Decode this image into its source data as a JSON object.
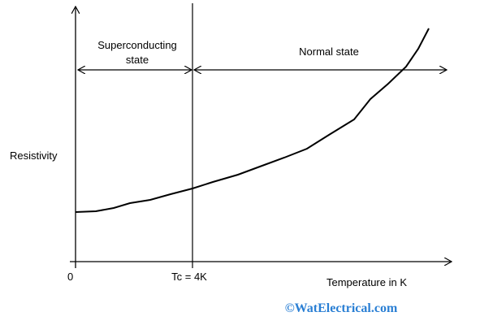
{
  "diagram": {
    "labels": {
      "superconducting_line1": "Superconducting",
      "superconducting_line2": "state",
      "normal_state": "Normal state",
      "y_axis": "Resistivity",
      "origin": "0",
      "tc": "Tc = 4K",
      "x_axis": "Temperature in K"
    },
    "watermark": "©WatElectrical.com"
  }
}
